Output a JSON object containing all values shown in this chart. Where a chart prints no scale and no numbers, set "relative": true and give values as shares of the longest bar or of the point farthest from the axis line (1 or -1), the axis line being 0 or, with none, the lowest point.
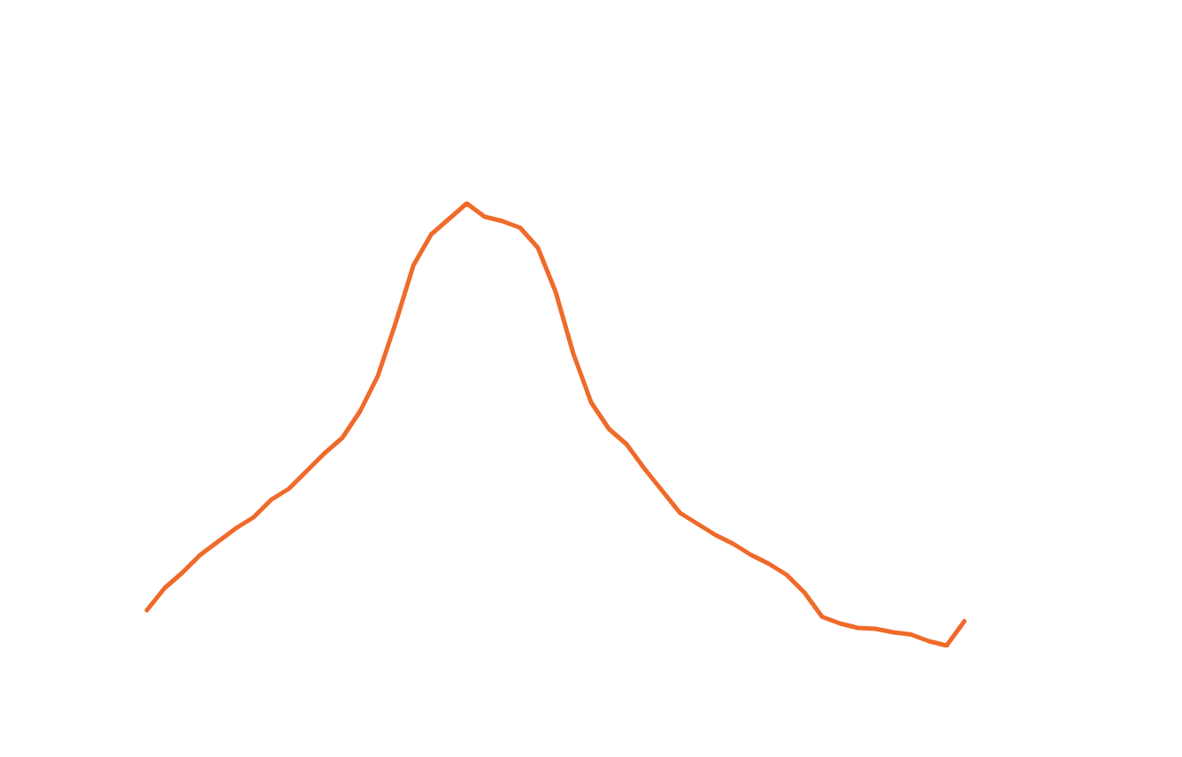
{
  "chart_data": {
    "type": "line",
    "relative": true,
    "marker": "none",
    "line_style": "solid",
    "categories": [
      null,
      null,
      null,
      null,
      null,
      null,
      null,
      null,
      null,
      null,
      null,
      null,
      null,
      null,
      null,
      null,
      null,
      null,
      null,
      null,
      null,
      null,
      null,
      null,
      null,
      null,
      null,
      null,
      null,
      null,
      null,
      null,
      null,
      null,
      null,
      null,
      null,
      null,
      null,
      null,
      null,
      null,
      null,
      null,
      null,
      null,
      null
    ],
    "series": [
      {
        "color": "#f06a2a",
        "values": [
          0.08,
          0.13,
          0.165,
          0.205,
          0.235,
          0.265,
          0.29,
          0.33,
          0.355,
          0.395,
          0.435,
          0.47,
          0.53,
          0.61,
          0.73,
          0.86,
          0.93,
          0.965,
          1,
          0.97,
          0.96,
          0.945,
          0.9,
          0.8,
          0.66,
          0.55,
          0.49,
          0.455,
          0.4,
          0.35,
          0.3,
          0.275,
          0.25,
          0.23,
          0.205,
          0.185,
          0.16,
          0.12,
          0.065,
          0.05,
          0.04,
          0.038,
          0.03,
          0.025,
          0.01,
          0,
          0.055
        ]
      }
    ]
  }
}
